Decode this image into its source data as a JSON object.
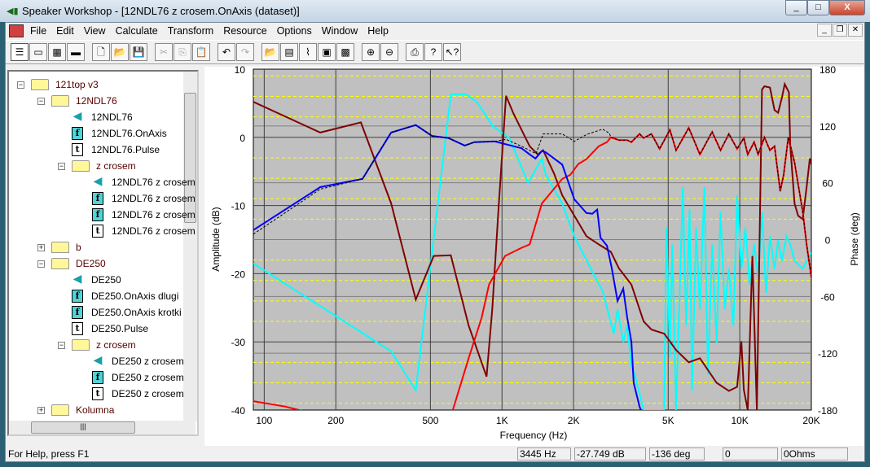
{
  "window": {
    "title": "Speaker Workshop - [12NDL76 z crosem.OnAxis (dataset)]",
    "min": "_",
    "max": "□",
    "close": "X"
  },
  "menu": [
    "File",
    "Edit",
    "View",
    "Calculate",
    "Transform",
    "Resource",
    "Options",
    "Window",
    "Help"
  ],
  "toolbar": [
    {
      "icon": "tree-view-icon",
      "g": "☰"
    },
    {
      "icon": "data-view-icon",
      "g": "▭"
    },
    {
      "icon": "grid-view-icon",
      "g": "▦"
    },
    {
      "icon": "color-view-icon",
      "g": "▬"
    },
    {
      "icon": "new-icon",
      "g": "🗋"
    },
    {
      "icon": "open-icon",
      "g": "📂"
    },
    {
      "icon": "save-icon",
      "g": "💾"
    },
    {
      "icon": "cut-icon",
      "g": "✂",
      "dis": true
    },
    {
      "icon": "copy-icon",
      "g": "⎘",
      "dis": true
    },
    {
      "icon": "paste-icon",
      "g": "📋"
    },
    {
      "icon": "undo-icon",
      "g": "↶"
    },
    {
      "icon": "redo-icon",
      "g": "↷",
      "dis": true
    },
    {
      "icon": "open-folder-icon",
      "g": "📂",
      "dis": true
    },
    {
      "icon": "properties-icon",
      "g": "▤"
    },
    {
      "icon": "chart-icon",
      "g": "⌇"
    },
    {
      "icon": "export-icon",
      "g": "▣"
    },
    {
      "icon": "import-icon",
      "g": "▩"
    },
    {
      "icon": "zoom-in-icon",
      "g": "⊕"
    },
    {
      "icon": "zoom-out-icon",
      "g": "⊖"
    },
    {
      "icon": "print-icon",
      "g": "⎙"
    },
    {
      "icon": "help-icon",
      "g": "?"
    },
    {
      "icon": "context-help-icon",
      "g": "↖?"
    }
  ],
  "tree": [
    {
      "label": "121top v3",
      "type": "folder",
      "level": 0,
      "exp": "−"
    },
    {
      "label": "12NDL76",
      "type": "folder",
      "level": 1,
      "exp": "−"
    },
    {
      "label": "12NDL76",
      "type": "speaker",
      "level": 2
    },
    {
      "label": "12NDL76.OnAxis",
      "type": "f",
      "level": 2
    },
    {
      "label": "12NDL76.Pulse",
      "type": "t",
      "level": 2
    },
    {
      "label": "z crosem",
      "type": "folder",
      "level": 2,
      "exp": "−"
    },
    {
      "label": "12NDL76 z crosem",
      "type": "speaker",
      "level": 3
    },
    {
      "label": "12NDL76 z crosem",
      "type": "f",
      "level": 3
    },
    {
      "label": "12NDL76 z crosem",
      "type": "f",
      "level": 3
    },
    {
      "label": "12NDL76 z crosem",
      "type": "t",
      "level": 3
    },
    {
      "label": "b",
      "type": "folder",
      "level": 1,
      "exp": "+"
    },
    {
      "label": "DE250",
      "type": "folder",
      "level": 1,
      "exp": "−"
    },
    {
      "label": "DE250",
      "type": "speaker",
      "level": 2
    },
    {
      "label": "DE250.OnAxis dlugi",
      "type": "f",
      "level": 2
    },
    {
      "label": "DE250.OnAxis krotki",
      "type": "f",
      "level": 2
    },
    {
      "label": "DE250.Pulse",
      "type": "t",
      "level": 2
    },
    {
      "label": "z crosem",
      "type": "folder",
      "level": 2,
      "exp": "−"
    },
    {
      "label": "DE250 z crosem",
      "type": "speaker",
      "level": 3
    },
    {
      "label": "DE250 z crosem",
      "type": "f",
      "level": 3
    },
    {
      "label": "DE250 z crosem",
      "type": "t",
      "level": 3
    },
    {
      "label": "Kolumna",
      "type": "folder",
      "level": 1,
      "exp": "+"
    }
  ],
  "status": {
    "help": "For Help, press F1",
    "freq": "3445 Hz",
    "amp": "-27.749 dB",
    "phase": "-136 deg",
    "v4": "0",
    "ohms": "0Ohms"
  },
  "chart_data": {
    "type": "line",
    "xlabel": "Frequency (Hz)",
    "ylabel": "Amplitude (dB)",
    "y2label": "Phase (deg)",
    "xscale": "log",
    "xlim": [
      90,
      20000
    ],
    "ylim": [
      -40,
      10
    ],
    "y2lim": [
      -180,
      180
    ],
    "xticks": [
      {
        "v": 100,
        "l": "100"
      },
      {
        "v": 200,
        "l": "200"
      },
      {
        "v": 500,
        "l": "500"
      },
      {
        "v": 1000,
        "l": "1K"
      },
      {
        "v": 2000,
        "l": "2K"
      },
      {
        "v": 5000,
        "l": "5K"
      },
      {
        "v": 10000,
        "l": "10K"
      },
      {
        "v": 20000,
        "l": "20K"
      }
    ],
    "yticks": [
      "10",
      "0",
      "-10",
      "-20",
      "-30",
      "-40"
    ],
    "y2ticks": [
      "180",
      "120",
      "60",
      "0",
      "-60",
      "-120",
      "-180"
    ],
    "grid": true,
    "background": "#c0c0c0",
    "series": [
      {
        "color": "#00ffff",
        "points": [
          [
            90,
            -18.5
          ],
          [
            342,
            -31.4
          ],
          [
            434,
            -37.1
          ],
          [
            609,
            6.3
          ],
          [
            707,
            6.3
          ],
          [
            784,
            5.2
          ],
          [
            917,
            1.6
          ],
          [
            1073,
            -0.1
          ],
          [
            1287,
            -6.7
          ],
          [
            1471,
            -3.1
          ],
          [
            1527,
            -5.5
          ],
          [
            1792,
            -9.7
          ],
          [
            2016,
            -14.5
          ],
          [
            2456,
            -20.4
          ],
          [
            2650,
            -22.5
          ],
          [
            2830,
            -26.4
          ],
          [
            2950,
            -28.8
          ],
          [
            3061,
            -25.2
          ],
          [
            3235,
            -30
          ],
          [
            3360,
            -27.6
          ],
          [
            3500,
            -33.6
          ],
          [
            3630,
            -35
          ],
          [
            3940,
            -40
          ],
          [
            4808,
            -40
          ],
          [
            4920,
            -13.2
          ],
          [
            5080,
            -32.3
          ],
          [
            5200,
            -15.7
          ],
          [
            5400,
            -40
          ],
          [
            5760,
            -7.3
          ],
          [
            5950,
            -27.6
          ],
          [
            6150,
            -10.5
          ],
          [
            6300,
            -37.1
          ],
          [
            6550,
            -13.3
          ],
          [
            6800,
            -25.3
          ],
          [
            7100,
            -7.3
          ],
          [
            7350,
            -34.8
          ],
          [
            7650,
            -15.7
          ],
          [
            7990,
            -30.1
          ],
          [
            8300,
            -10.9
          ],
          [
            8650,
            -25.2
          ],
          [
            9000,
            -19.3
          ],
          [
            9400,
            -27.6
          ],
          [
            9750,
            -8.5
          ],
          [
            10160,
            -19.3
          ],
          [
            10560,
            -13.3
          ],
          [
            11000,
            -21.6
          ],
          [
            11500,
            -15.7
          ],
          [
            11950,
            -20.4
          ],
          [
            12400,
            -10.9
          ],
          [
            12900,
            -22.8
          ],
          [
            13400,
            -14.5
          ],
          [
            14000,
            -19.3
          ],
          [
            14500,
            -15.1
          ],
          [
            15060,
            -18.1
          ],
          [
            15700,
            -14.5
          ],
          [
            16300,
            -15.7
          ],
          [
            17000,
            -18.1
          ],
          [
            18400,
            -19.3
          ],
          [
            20000,
            -16.9
          ]
        ]
      },
      {
        "color": "#800000",
        "points": [
          [
            90,
            5.2
          ],
          [
            172,
            0.7
          ],
          [
            255,
            2.2
          ],
          [
            342,
            -9.7
          ],
          [
            434,
            -23.8
          ],
          [
            516,
            -17.4
          ],
          [
            609,
            -17.3
          ],
          [
            724,
            -27.6
          ],
          [
            861,
            -35.1
          ],
          [
            910,
            -25.2
          ],
          [
            970,
            -9.7
          ],
          [
            1040,
            6.1
          ],
          [
            1117,
            3.5
          ],
          [
            1307,
            -1.3
          ],
          [
            1415,
            -2.5
          ],
          [
            1490,
            -1.9
          ],
          [
            1655,
            -5.3
          ],
          [
            1792,
            -8.5
          ],
          [
            2016,
            -11.5
          ],
          [
            2266,
            -14.5
          ],
          [
            2554,
            -15.7
          ],
          [
            2870,
            -16.8
          ],
          [
            3100,
            -19.2
          ],
          [
            3500,
            -21.6
          ],
          [
            3940,
            -27
          ],
          [
            4250,
            -28.2
          ],
          [
            4810,
            -28.8
          ],
          [
            5400,
            -31.2
          ],
          [
            6100,
            -33
          ],
          [
            6800,
            -32.4
          ],
          [
            7990,
            -36
          ],
          [
            9000,
            -37.2
          ],
          [
            9750,
            -36.6
          ],
          [
            10160,
            -29.9
          ],
          [
            10400,
            -37
          ],
          [
            10800,
            -40
          ],
          [
            11300,
            -17.4
          ],
          [
            11800,
            -40
          ],
          [
            12400,
            7.0
          ],
          [
            12700,
            7.5
          ],
          [
            13400,
            7.3
          ],
          [
            14000,
            4.0
          ],
          [
            14500,
            3.6
          ],
          [
            15060,
            5.9
          ],
          [
            15450,
            7.8
          ],
          [
            16100,
            6.6
          ],
          [
            16300,
            -1.2
          ],
          [
            17000,
            -9.7
          ],
          [
            17600,
            -11.5
          ],
          [
            18400,
            -12
          ],
          [
            19100,
            -7.3
          ],
          [
            19700,
            -3.1
          ],
          [
            20000,
            -4
          ]
        ]
      },
      {
        "color": "#ff0000",
        "points": [
          [
            90,
            -38.7
          ],
          [
            123,
            -39.5
          ],
          [
            160,
            -40.5
          ],
          [
            615,
            -40.5
          ],
          [
            724,
            -32.4
          ],
          [
            822,
            -26.4
          ],
          [
            882,
            -21.6
          ],
          [
            1030,
            -17.4
          ],
          [
            1208,
            -16.2
          ],
          [
            1307,
            -15.7
          ],
          [
            1471,
            -9.7
          ],
          [
            1792,
            -6.1
          ],
          [
            1937,
            -5.5
          ],
          [
            2095,
            -3.9
          ],
          [
            2266,
            -3.2
          ],
          [
            2554,
            -1.3
          ],
          [
            2764,
            -0.7
          ],
          [
            2870,
            0
          ],
          [
            3100,
            -0.4
          ],
          [
            3360,
            -0.4
          ],
          [
            3500,
            -0.7
          ],
          [
            3788,
            0.5
          ],
          [
            3940,
            -0.1
          ],
          [
            4250,
            0.5
          ],
          [
            4600,
            -1.7
          ],
          [
            5080,
            1.1
          ],
          [
            5400,
            -1.9
          ],
          [
            6100,
            1.4
          ],
          [
            6800,
            -2.5
          ],
          [
            7650,
            0.8
          ],
          [
            8300,
            -1.9
          ],
          [
            9000,
            0.5
          ],
          [
            9750,
            -1.7
          ],
          [
            10400,
            -0.1
          ],
          [
            10800,
            -2.5
          ],
          [
            11500,
            -0.7
          ],
          [
            11950,
            -2.5
          ],
          [
            12700,
            0
          ],
          [
            13400,
            -1.9
          ],
          [
            14000,
            -1.3
          ],
          [
            14800,
            -7.9
          ],
          [
            15300,
            -5.5
          ],
          [
            16000,
            0
          ],
          [
            17000,
            -3.7
          ],
          [
            18400,
            -10.9
          ],
          [
            19100,
            -15.7
          ],
          [
            20000,
            -20.5
          ]
        ]
      },
      {
        "color": "#0000ff",
        "points": [
          [
            90,
            -13.6
          ],
          [
            172,
            -7.3
          ],
          [
            259,
            -6.1
          ],
          [
            342,
            0.7
          ],
          [
            434,
            1.8
          ],
          [
            508,
            0.2
          ],
          [
            595,
            -0.1
          ],
          [
            697,
            -1.2
          ],
          [
            765,
            -0.7
          ],
          [
            932,
            -0.6
          ],
          [
            1117,
            -1.3
          ],
          [
            1208,
            -1.6
          ],
          [
            1307,
            -2.5
          ],
          [
            1382,
            -3.1
          ],
          [
            1471,
            -2.0
          ],
          [
            1527,
            -2.2
          ],
          [
            1792,
            -4.0
          ],
          [
            2016,
            -9.1
          ],
          [
            2266,
            -11.1
          ],
          [
            2398,
            -11.2
          ],
          [
            2514,
            -10.6
          ],
          [
            2594,
            -14.7
          ],
          [
            2764,
            -15.9
          ],
          [
            2896,
            -19.2
          ],
          [
            3061,
            -24
          ],
          [
            3235,
            -22.2
          ],
          [
            3360,
            -26.4
          ],
          [
            3500,
            -30
          ],
          [
            3580,
            -36
          ],
          [
            3788,
            -39.5
          ],
          [
            3940,
            -41
          ]
        ]
      },
      {
        "color": "#000000",
        "dashed": true,
        "points": [
          [
            90,
            -14.2
          ],
          [
            172,
            -7.6
          ],
          [
            259,
            -6.1
          ],
          [
            342,
            0.7
          ],
          [
            434,
            1.8
          ],
          [
            508,
            0.2
          ],
          [
            595,
            -0.1
          ],
          [
            697,
            -1.2
          ],
          [
            765,
            -0.7
          ],
          [
            932,
            -0.6
          ],
          [
            1040,
            -0.3
          ],
          [
            1208,
            -1.3
          ],
          [
            1390,
            -2.4
          ],
          [
            1490,
            0.5
          ],
          [
            1792,
            0.5
          ],
          [
            2016,
            -0.6
          ],
          [
            2266,
            0.4
          ],
          [
            2650,
            1.2
          ],
          [
            2830,
            0.6
          ],
          [
            2870,
            0
          ],
          [
            3100,
            -0.4
          ],
          [
            3360,
            -0.4
          ],
          [
            3500,
            -0.7
          ],
          [
            3788,
            0.5
          ],
          [
            3940,
            -0.1
          ],
          [
            4250,
            0.5
          ],
          [
            4600,
            -1.7
          ],
          [
            5080,
            1.1
          ],
          [
            5400,
            -1.9
          ],
          [
            6100,
            1.4
          ],
          [
            6800,
            -2.5
          ],
          [
            7650,
            0.8
          ],
          [
            8300,
            -1.9
          ],
          [
            9000,
            0.5
          ],
          [
            9750,
            -1.7
          ],
          [
            10400,
            -0.1
          ],
          [
            10800,
            -2.5
          ],
          [
            11500,
            -0.7
          ],
          [
            11950,
            -2.5
          ],
          [
            12700,
            0
          ],
          [
            13400,
            -1.9
          ],
          [
            14000,
            -1.3
          ],
          [
            14800,
            -7.9
          ],
          [
            15300,
            -5.5
          ],
          [
            16000,
            0
          ],
          [
            17000,
            -3.7
          ],
          [
            18400,
            -10.9
          ],
          [
            19100,
            -15.7
          ],
          [
            20000,
            -20.5
          ]
        ]
      }
    ]
  }
}
